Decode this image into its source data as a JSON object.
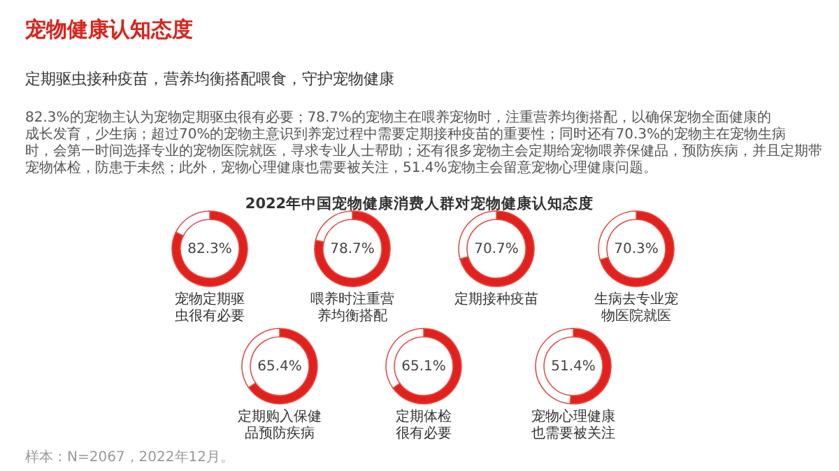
{
  "chart_data": [
    {
      "type": "other",
      "title": "宠物健康认知态度",
      "subtitle": "定期驱虫接种疫苗，营养均衡搭配喂食，守护宠物健康",
      "annotations": [
        "82.3%的宠物主认为宠物定期驱虫很有必要；78.7%的宠物主在喂养宠物时，注重营养均衡搭配，以确保宠物全面健康的成长发育，少生病；超过70%的宠物主意识到养宠过程中需要定期接种疫苗的重要性；同时还有70.3%的宠物主在宠物生病时，会第一时间选择专业的宠物医院就医，寻求专业人士帮助；还有很多宠物主会定期给宠物喂养保健品，预防疾病，并且定期带宠物体检，防患于未然；此外，宠物心理健康也需要被关注，51.4%宠物主会留意宠物心理健康问题。",
        "2022年中国宠物健康消费人群对宠物健康认知态度",
        "样本：N=2067，2022年12月。"
      ]
    },
    {
      "type": "donut",
      "categories": [
        "宠物定期驱虫很有必要",
        null
      ],
      "values": [
        82.3,
        17.7
      ],
      "colors": [
        "#e3211c",
        "#ffffff"
      ],
      "value_labels": [
        "82.3%",
        null
      ]
    },
    {
      "type": "donut",
      "categories": [
        "喂养时注重营养均衡搭配",
        null
      ],
      "values": [
        78.7,
        21.3
      ],
      "colors": [
        "#e3211c",
        "#ffffff"
      ],
      "value_labels": [
        "78.7%",
        null
      ]
    },
    {
      "type": "donut",
      "categories": [
        "定期接种疫苗",
        null
      ],
      "values": [
        70.7,
        29.3
      ],
      "colors": [
        "#e3211c",
        "#ffffff"
      ],
      "value_labels": [
        "70.7%",
        null
      ]
    },
    {
      "type": "donut",
      "categories": [
        "生病去专业宠物医院就医",
        null
      ],
      "values": [
        70.3,
        29.7
      ],
      "colors": [
        "#e3211c",
        "#ffffff"
      ],
      "value_labels": [
        "70.3%",
        null
      ]
    },
    {
      "type": "donut",
      "categories": [
        "定期购入保健品预防疾病",
        null
      ],
      "values": [
        65.4,
        34.6
      ],
      "colors": [
        "#e3211c",
        "#ffffff"
      ],
      "value_labels": [
        "65.4%",
        null
      ]
    },
    {
      "type": "donut",
      "categories": [
        "定期体检很有必要",
        null
      ],
      "values": [
        65.1,
        34.9
      ],
      "colors": [
        "#e3211c",
        "#ffffff"
      ],
      "value_labels": [
        "65.1%",
        null
      ]
    },
    {
      "type": "donut",
      "categories": [
        "宠物心理健康也需要被关注",
        null
      ],
      "values": [
        51.4,
        48.6
      ],
      "colors": [
        "#e3211c",
        "#ffffff"
      ],
      "value_labels": [
        "51.4%",
        null
      ]
    }
  ]
}
